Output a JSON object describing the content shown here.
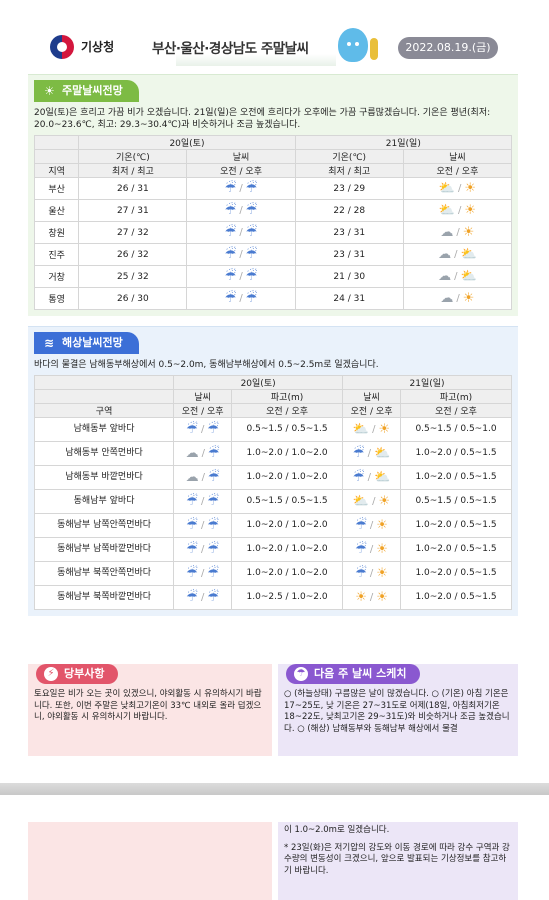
{
  "header": {
    "agency": "기상청",
    "title": "부산·울산·경상남도 주말날씨",
    "date": "2022.08.19.(금)"
  },
  "land": {
    "tab": "주말날씨전망",
    "summary": "20일(토)은 흐리고 가끔 비가 오겠습니다. 21일(일)은 오전에 흐리다가 오후에는 가끔 구름많겠습니다. 기온은 평년(최저: 20.0~23.6℃, 최고: 29.3~30.4℃)과 비슷하거나 조금 높겠습니다.",
    "day1": "20일(토)",
    "day2": "21일(일)",
    "temp_header": "기온(℃)",
    "wx_header": "날씨",
    "region_header": "지역",
    "minmax": "최저 / 최고",
    "ampm": "오전 / 오후",
    "rows": [
      {
        "region": "부산",
        "t1": "26 / 31",
        "w1a": "rain",
        "w1b": "rain",
        "t2": "23 / 29",
        "w2a": "suncloud",
        "w2b": "sun"
      },
      {
        "region": "울산",
        "t1": "27 / 31",
        "w1a": "rain",
        "w1b": "rain",
        "t2": "22 / 28",
        "w2a": "suncloud",
        "w2b": "sun"
      },
      {
        "region": "창원",
        "t1": "27 / 32",
        "w1a": "rain",
        "w1b": "rain",
        "t2": "23 / 31",
        "w2a": "cloud",
        "w2b": "sun"
      },
      {
        "region": "진주",
        "t1": "26 / 32",
        "w1a": "rain",
        "w1b": "rain",
        "t2": "23 / 31",
        "w2a": "cloud",
        "w2b": "suncloud"
      },
      {
        "region": "거창",
        "t1": "25 / 32",
        "w1a": "rain",
        "w1b": "rain",
        "t2": "21 / 30",
        "w2a": "cloud",
        "w2b": "suncloud"
      },
      {
        "region": "통영",
        "t1": "26 / 30",
        "w1a": "rain",
        "w1b": "rain",
        "t2": "24 / 31",
        "w2a": "cloud",
        "w2b": "sun"
      }
    ]
  },
  "sea": {
    "tab": "해상날씨전망",
    "summary": "바다의 물결은 남해동부해상에서 0.5~2.0m, 동해남부해상에서 0.5~2.5m로 일겠습니다.",
    "day1": "20일(토)",
    "day2": "21일(일)",
    "wx_header": "날씨",
    "wave_header": "파고(m)",
    "area_header": "구역",
    "ampm": "오전 / 오후",
    "rows": [
      {
        "area": "남해동부 앞바다",
        "w1a": "rain",
        "w1b": "rain",
        "h1": "0.5~1.5 / 0.5~1.5",
        "w2a": "suncloud",
        "w2b": "sun",
        "h2": "0.5~1.5 / 0.5~1.0"
      },
      {
        "area": "남해동부 안쪽먼바다",
        "w1a": "cloud",
        "w1b": "rain",
        "h1": "1.0~2.0 / 1.0~2.0",
        "w2a": "rain",
        "w2b": "suncloud",
        "h2": "1.0~2.0 / 0.5~1.5"
      },
      {
        "area": "남해동부 바깥먼바다",
        "w1a": "cloud",
        "w1b": "rain",
        "h1": "1.0~2.0 / 1.0~2.0",
        "w2a": "rain",
        "w2b": "suncloud",
        "h2": "1.0~2.0 / 0.5~1.5"
      },
      {
        "area": "동해남부 앞바다",
        "w1a": "rain",
        "w1b": "rain",
        "h1": "0.5~1.5 / 0.5~1.5",
        "w2a": "suncloud",
        "w2b": "sun",
        "h2": "0.5~1.5 / 0.5~1.5"
      },
      {
        "area": "동해남부 남쪽안쪽먼바다",
        "w1a": "rain",
        "w1b": "rain",
        "h1": "1.0~2.0 / 1.0~2.0",
        "w2a": "rain",
        "w2b": "sun",
        "h2": "1.0~2.0 / 0.5~1.5"
      },
      {
        "area": "동해남부 남쪽바깥먼바다",
        "w1a": "rain",
        "w1b": "rain",
        "h1": "1.0~2.0 / 1.0~2.0",
        "w2a": "rain",
        "w2b": "sun",
        "h2": "1.0~2.0 / 0.5~1.5"
      },
      {
        "area": "동해남부 북쪽안쪽먼바다",
        "w1a": "rain",
        "w1b": "rain",
        "h1": "1.0~2.0 / 1.0~2.0",
        "w2a": "rain",
        "w2b": "sun",
        "h2": "1.0~2.0 / 0.5~1.5"
      },
      {
        "area": "동해남부 북쪽바깥먼바다",
        "w1a": "rain",
        "w1b": "rain",
        "h1": "1.0~2.5 / 1.0~2.0",
        "w2a": "sun",
        "w2b": "sun",
        "h2": "1.0~2.0 / 0.5~1.5"
      }
    ]
  },
  "warning": {
    "title": "당부사항",
    "text": "토요일은 비가 오는 곳이 있겠으니, 야외활동 시 유의하시기 바랍니다. 또한, 이번 주말은 낮최고기온이 33℃ 내외로 올라 덥겠으니, 야외활동 시 유의하시기 바랍니다."
  },
  "next_week": {
    "title": "다음 주 날씨 스케치",
    "text": "○ (하늘상태) 구름많은 날이 많겠습니다. ○ (기온) 아침 기온은 17~25도, 낮 기온은 27~31도로 어제(18일, 아침최저기온 18~22도, 낮최고기온 29~31도)와 비슷하거나 조금 높겠습니다. ○ (해상) 남해동부와 동해남부 해상에서 물결",
    "continued": "이 1.0~2.0m로 일겠습니다.",
    "note": "* 23일(화)은 저기압의 강도와 이동 경로에 따라 강수 구역과 강수량의 변동성이 크겠으니, 앞으로 발표되는 기상정보를 참고하기 바랍니다."
  },
  "icons": {
    "rain": "rain-cloud-icon",
    "cloud": "cloud-icon",
    "sun": "sun-icon",
    "suncloud": "sun-cloud-icon"
  }
}
